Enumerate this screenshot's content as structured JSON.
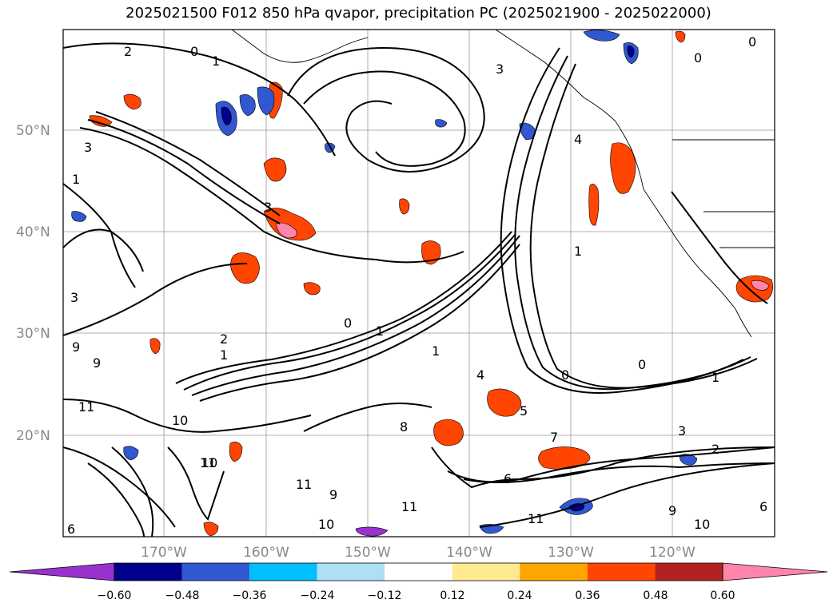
{
  "title": "2025021500 F012 850 hPa qvapor, precipitation PC (2025021900 - 2025022000)",
  "lat_labels": [
    "50°N",
    "40°N",
    "30°N",
    "20°N"
  ],
  "lon_labels": [
    "170°W",
    "160°W",
    "150°W",
    "140°W",
    "130°W",
    "120°W"
  ],
  "colorbar": {
    "colors": [
      "#9932cc",
      "#00008b",
      "#3158d0",
      "#00bfff",
      "#aedff7",
      "#ffffff",
      "#ffeb8f",
      "#ffa500",
      "#ff4500",
      "#b22222",
      "#ff85ad"
    ],
    "tick_labels": [
      "−0.60",
      "−0.48",
      "−0.36",
      "−0.24",
      "−0.12",
      "0.12",
      "0.24",
      "0.36",
      "0.48",
      "0.60"
    ]
  },
  "contour_labels": [
    "2",
    "0",
    "1",
    "3",
    "3",
    "1",
    "0",
    "0",
    "2",
    "3",
    "1",
    "3",
    "0",
    "1",
    "9",
    "9",
    "11",
    "10",
    "11",
    "10",
    "6",
    "9",
    "11",
    "10",
    "6",
    "7",
    "11",
    "10",
    "8",
    "3",
    "2",
    "6",
    "1",
    "0",
    "4",
    "0",
    "1",
    "1",
    "4",
    "5",
    "9",
    "11"
  ]
}
